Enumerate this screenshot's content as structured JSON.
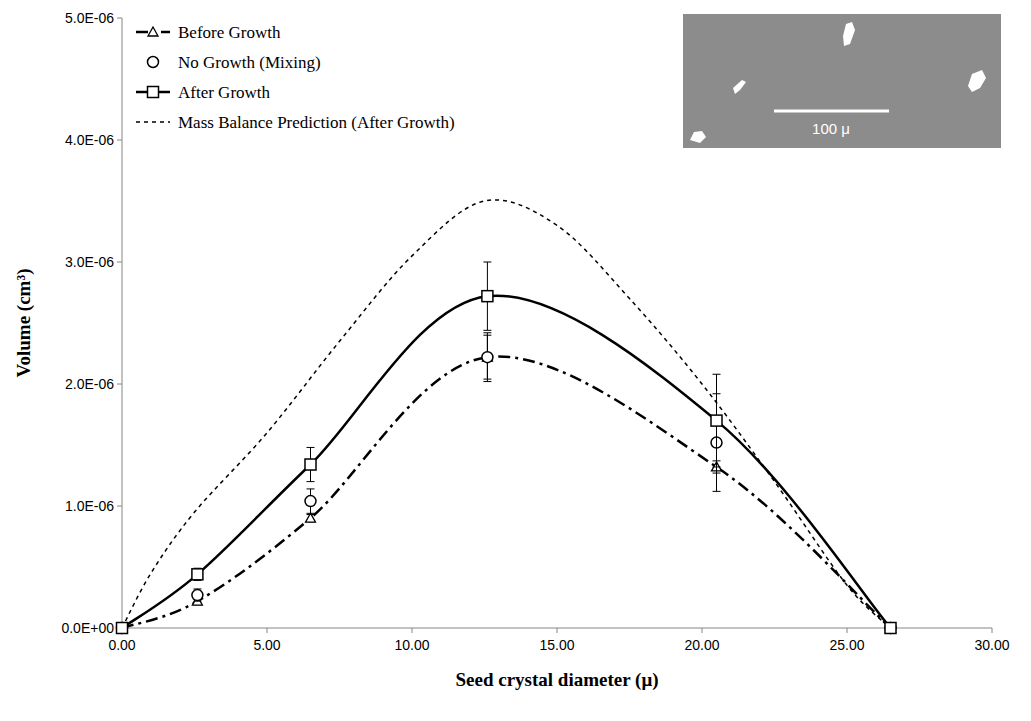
{
  "chart_data": {
    "type": "line",
    "x_label": "Seed crystal diameter (μ)",
    "y_label": "Volume (cm³)",
    "annotations": [
      "100 μ"
    ],
    "xlim": [
      0,
      30
    ],
    "xticks": [
      {
        "value": 0,
        "label": "0.00"
      },
      {
        "value": 5,
        "label": "5.00"
      },
      {
        "value": 10,
        "label": "10.00"
      },
      {
        "value": 15,
        "label": "15.00"
      },
      {
        "value": 20,
        "label": "20.00"
      },
      {
        "value": 25,
        "label": "25.00"
      },
      {
        "value": 30,
        "label": "30.00"
      }
    ],
    "ylim": [
      0,
      5e-06
    ],
    "yticks": [
      {
        "value": 0,
        "label": "0.0E+00"
      },
      {
        "value": 1e-06,
        "label": "1.0E-06"
      },
      {
        "value": 2e-06,
        "label": "2.0E-06"
      },
      {
        "value": 3e-06,
        "label": "3.0E-06"
      },
      {
        "value": 4e-06,
        "label": "4.0E-06"
      },
      {
        "value": 5e-06,
        "label": "5.0E-06"
      }
    ],
    "grid": false,
    "legend": "upper left",
    "series": [
      {
        "name": "Before Growth",
        "color": "#000000",
        "marker": "triangle",
        "line_style": "dash-dot",
        "x": [
          0,
          2.6,
          6.5,
          12.6,
          20.5,
          26.5
        ],
        "values": [
          0,
          2.2e-07,
          9e-07,
          2.22e-06,
          1.32e-06,
          0
        ],
        "errors": [
          0,
          3e-08,
          3e-08,
          2e-07,
          5e-08,
          0
        ]
      },
      {
        "name": "No Growth (Mixing)",
        "color": "#000000",
        "marker": "circle",
        "line_style": "none",
        "x": [
          0,
          2.6,
          6.5,
          12.6,
          20.5,
          26.5
        ],
        "values": [
          0,
          2.7e-07,
          1.04e-06,
          2.22e-06,
          1.52e-06,
          0
        ],
        "errors": [
          0,
          5e-08,
          1e-07,
          1.8e-07,
          4e-07,
          0
        ]
      },
      {
        "name": "After Growth",
        "color": "#000000",
        "marker": "square",
        "line_style": "solid",
        "x": [
          0,
          2.6,
          6.5,
          12.6,
          20.5,
          26.5
        ],
        "values": [
          0,
          4.4e-07,
          1.34e-06,
          2.72e-06,
          1.7e-06,
          0
        ],
        "errors": [
          0,
          5e-08,
          1.4e-07,
          2.8e-07,
          3.8e-07,
          0
        ]
      },
      {
        "name": "Mass Balance Prediction (After Growth)",
        "color": "#000000",
        "marker": "none",
        "line_style": "dashed",
        "x": [
          0,
          1,
          2.5,
          5,
          7.5,
          10,
          12.5,
          15,
          17.5,
          20,
          22.5,
          25,
          26.5
        ],
        "values": [
          0,
          4.5e-07,
          9.5e-07,
          1.6e-06,
          2.35e-06,
          3.05e-06,
          3.5e-06,
          3.3e-06,
          2.7e-06,
          2e-06,
          1.2e-06,
          3.5e-07,
          0
        ]
      }
    ]
  }
}
